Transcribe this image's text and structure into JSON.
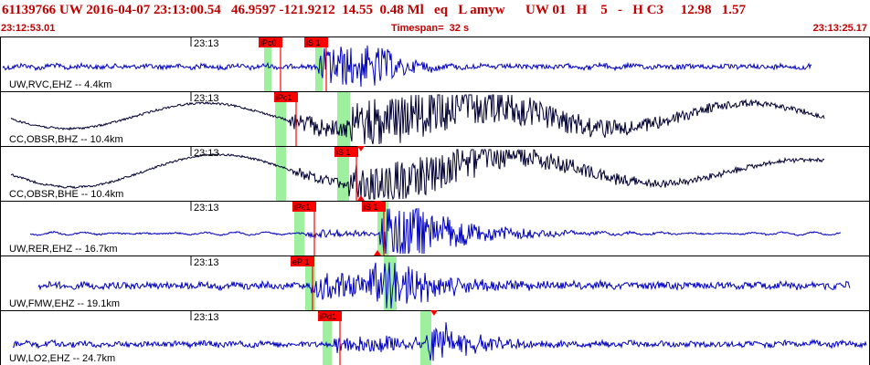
{
  "header": {
    "title": "61139766 UW 2016-04-07 23:13:00.54   46.9597 -121.9212  14.55  0.48 Ml   eq   L amyw      UW 01   H    5   -   H C3     12.98   1.57",
    "start_time": "23:12:53.01",
    "timespan": "Timespan=  32 s",
    "end_time": "23:13:25.17"
  },
  "colors": {
    "header_text": "#c00000",
    "trace_blue": "#0000c0",
    "trace_black": "#000033",
    "pick_box": "#ff0000",
    "pick_line": "#ff0000",
    "window_shade": "#9ef09e",
    "border": "#000000"
  },
  "panels": [
    {
      "label": "UW,RVC,EHZ -- 4.4km",
      "minute": "23:13",
      "color": "blue",
      "picks": [
        {
          "label": "iPc0",
          "x": 283
        },
        {
          "label": "iS 1",
          "x": 333
        }
      ],
      "shade": [
        [
          289,
          297
        ],
        [
          345,
          353
        ]
      ]
    },
    {
      "label": "CC,OBSR,BHZ -- 10.4km",
      "minute": "23:13",
      "color": "black",
      "picks": [
        {
          "label": "iPc1",
          "x": 300
        }
      ],
      "shade": [
        [
          301,
          313
        ],
        [
          369,
          383
        ]
      ]
    },
    {
      "label": "CC,OBSR,BHE -- 10.4km",
      "minute": "23:13",
      "color": "black",
      "picks": [
        {
          "label": "iS 1",
          "x": 366
        }
      ],
      "shade": [
        [
          302,
          313
        ],
        [
          369,
          382
        ]
      ]
    },
    {
      "label": "UW,RER,EHZ -- 16.7km",
      "minute": "23:13",
      "color": "blue",
      "picks": [
        {
          "label": "iPc1",
          "x": 320
        },
        {
          "label": "iS 1",
          "x": 396
        }
      ],
      "shade": [
        [
          322,
          333
        ],
        [
          413,
          425
        ]
      ]
    },
    {
      "label": "UW,FMW,EHZ -- 19.1km",
      "minute": "23:13",
      "color": "blue",
      "picks": [
        {
          "label": "eP 1",
          "x": 318
        }
      ],
      "shade": [
        [
          334,
          345
        ],
        [
          420,
          434
        ]
      ]
    },
    {
      "label": "UW,LO2,EHZ -- 24.7km",
      "minute": "23:13",
      "color": "blue",
      "picks": [
        {
          "label": "iPd1",
          "x": 348
        }
      ],
      "shade": [
        [
          353,
          363
        ],
        [
          460,
          472
        ]
      ]
    }
  ]
}
